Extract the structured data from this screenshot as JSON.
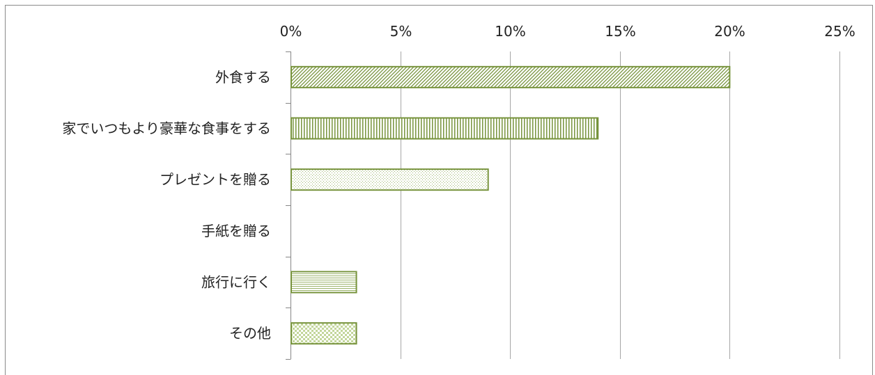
{
  "chart_data": {
    "type": "bar",
    "orientation": "horizontal",
    "categories": [
      "外食する",
      "家でいつもより豪華な食事をする",
      "プレゼントを贈る",
      "手紙を贈る",
      "旅行に行く",
      "その他"
    ],
    "values": [
      20,
      14,
      9,
      0,
      3,
      3
    ],
    "unit": "%",
    "xlim": [
      0,
      25
    ],
    "x_ticks": [
      0,
      5,
      10,
      15,
      20,
      25
    ],
    "x_tick_labels": [
      "0%",
      "5%",
      "10%",
      "15%",
      "20%",
      "25%"
    ],
    "x_axis_position": "top",
    "grid": true,
    "legend": "none",
    "patterns": [
      "diagonal",
      "vertical",
      "dots",
      "none",
      "horizontal",
      "checker"
    ],
    "colors": {
      "bar_edge": "#77933c",
      "pattern": "#77933c",
      "grid": "#a6a6a6"
    }
  }
}
